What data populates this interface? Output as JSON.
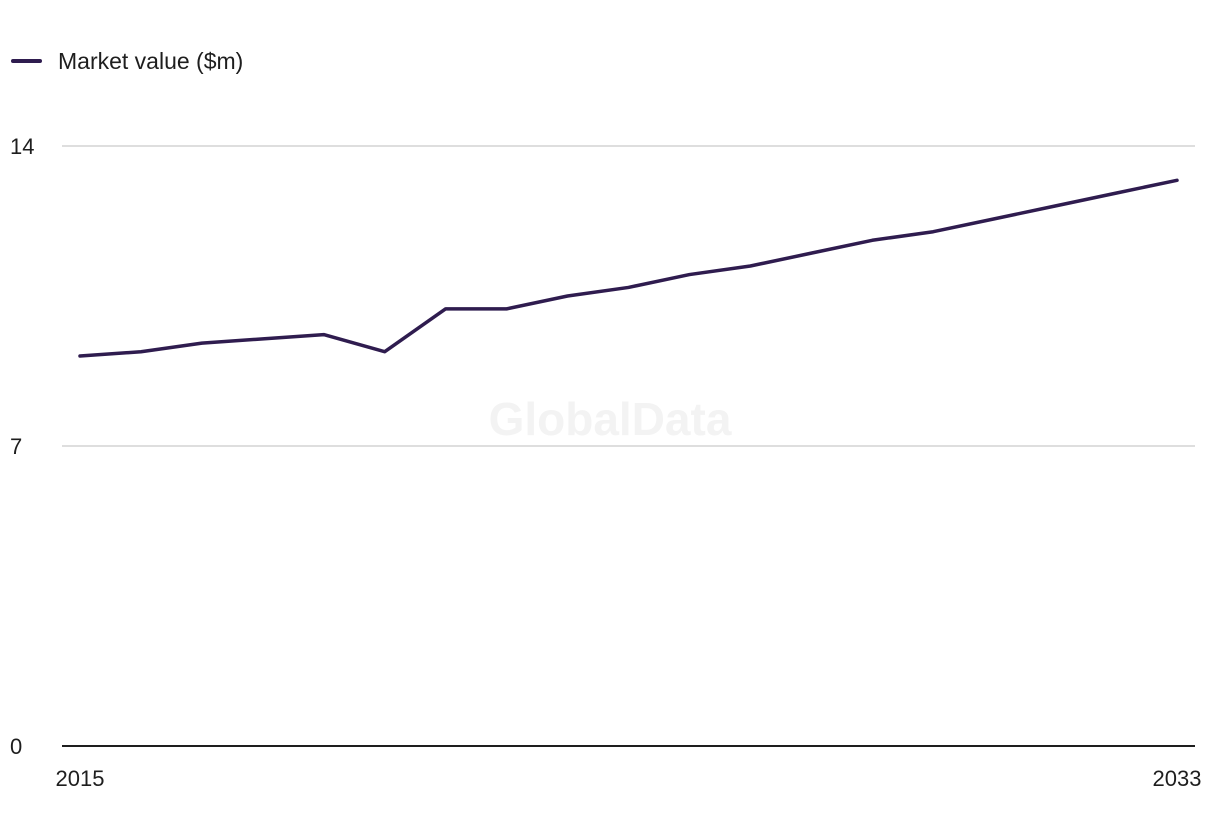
{
  "legend": {
    "label": "Market value ($m)"
  },
  "watermark": "GlobalData",
  "chart_data": {
    "type": "line",
    "x": [
      2015,
      2016,
      2017,
      2018,
      2019,
      2020,
      2021,
      2022,
      2023,
      2024,
      2025,
      2026,
      2027,
      2028,
      2029,
      2030,
      2031,
      2032,
      2033
    ],
    "series": [
      {
        "name": "Market value ($m)",
        "values": [
          9.1,
          9.2,
          9.4,
          9.5,
          9.6,
          9.2,
          10.2,
          10.2,
          10.5,
          10.7,
          11.0,
          11.2,
          11.5,
          11.8,
          12.0,
          12.3,
          12.6,
          12.9,
          13.2
        ],
        "color": "#2f1c4f"
      }
    ],
    "y_ticks": [
      "0",
      "7",
      "14"
    ],
    "x_ticks": [
      "2015",
      "2033"
    ],
    "ylim": [
      0,
      14
    ],
    "xlabel": "",
    "ylabel": "",
    "grid": true,
    "legend_position": "top-left"
  }
}
